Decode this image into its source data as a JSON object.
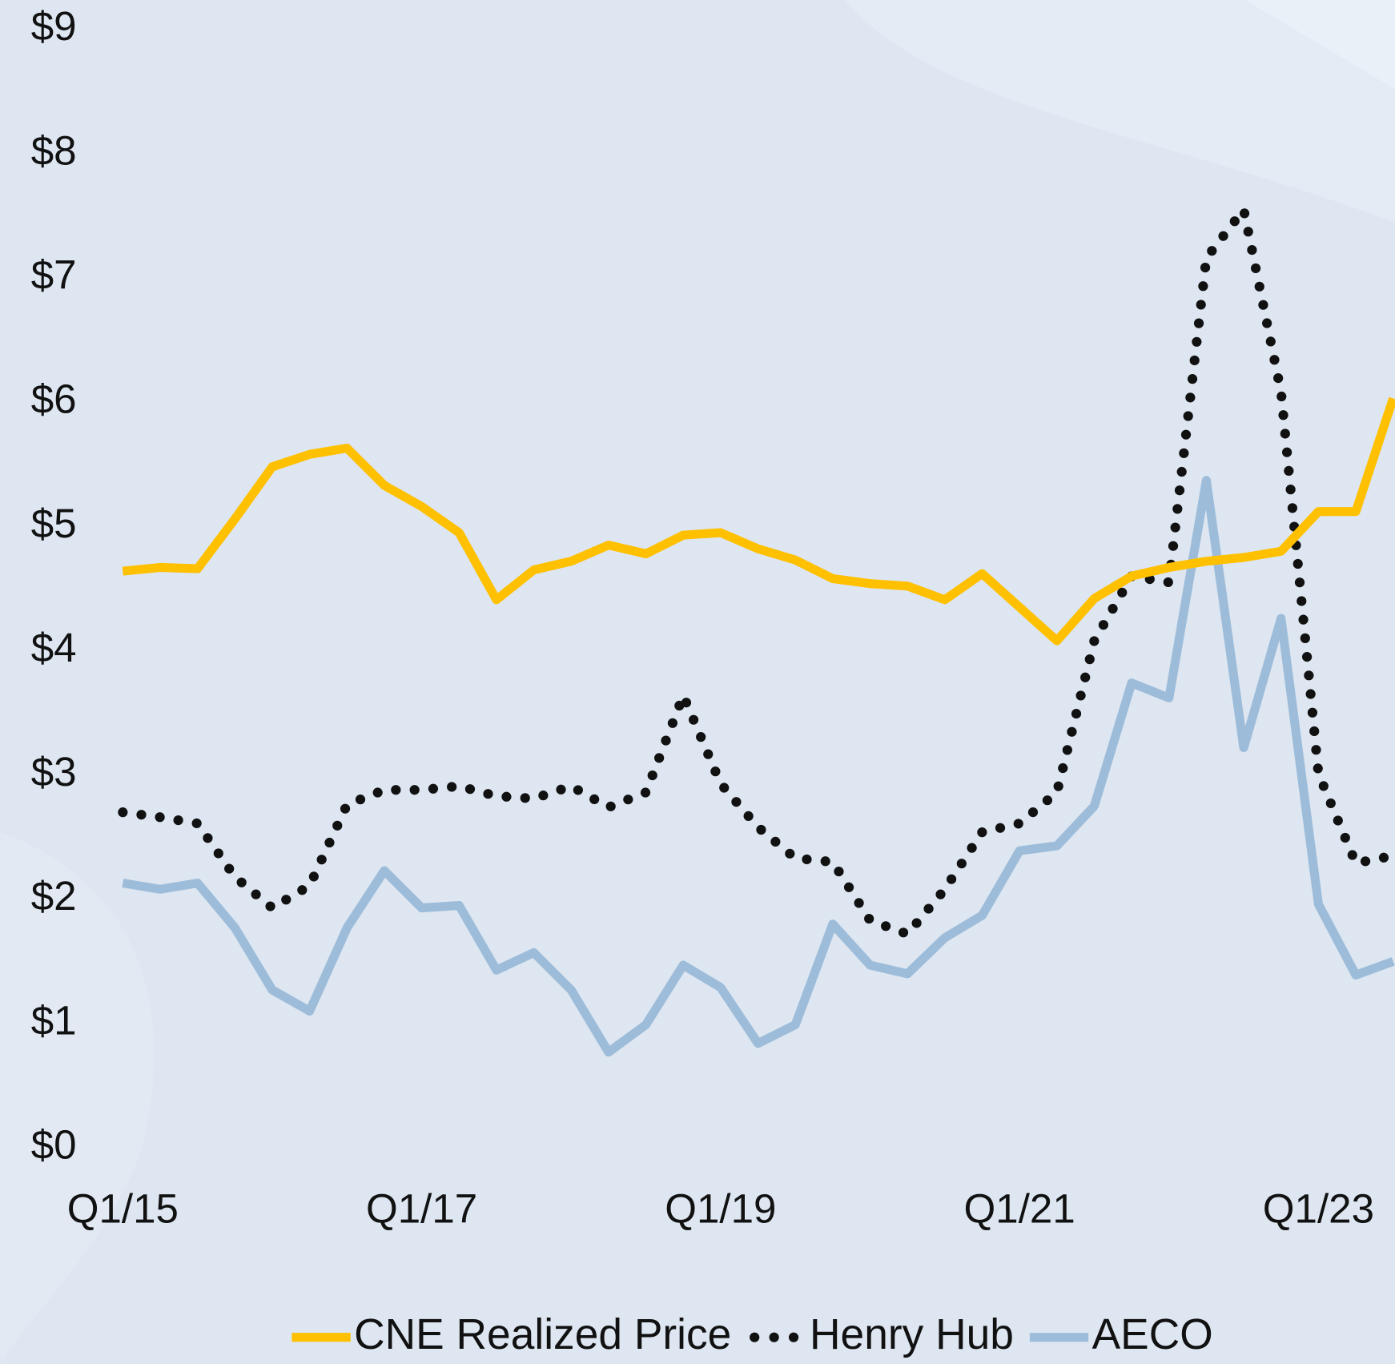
{
  "chart_data": {
    "type": "line",
    "categories": [
      "Q1/15",
      null,
      null,
      null,
      null,
      null,
      null,
      null,
      "Q1/17",
      null,
      null,
      null,
      null,
      null,
      null,
      null,
      "Q1/19",
      null,
      null,
      null,
      null,
      null,
      null,
      null,
      "Q1/21",
      null,
      null,
      null,
      null,
      null,
      null,
      null,
      "Q1/23",
      null,
      null
    ],
    "series": [
      {
        "name": "CNE Realized Price",
        "color": "#ffc000",
        "style": "solid",
        "values": [
          4.64,
          4.67,
          4.66,
          5.06,
          5.48,
          5.58,
          5.63,
          5.33,
          5.16,
          4.95,
          4.41,
          4.65,
          4.72,
          4.85,
          4.78,
          4.93,
          4.95,
          4.82,
          4.73,
          4.58,
          4.54,
          4.52,
          4.41,
          4.62,
          4.35,
          4.08,
          4.42,
          4.6,
          4.67,
          4.72,
          4.75,
          4.8,
          5.12,
          5.12,
          6.03
        ]
      },
      {
        "name": "Henry Hub",
        "color": "#111111",
        "style": "dotted",
        "values": [
          2.7,
          2.66,
          2.61,
          2.18,
          1.93,
          2.11,
          2.76,
          2.88,
          2.88,
          2.91,
          2.83,
          2.81,
          2.91,
          2.74,
          2.86,
          3.64,
          2.93,
          2.58,
          2.33,
          2.3,
          1.83,
          1.72,
          2.08,
          2.54,
          2.61,
          2.86,
          4.08,
          4.6,
          4.55,
          7.16,
          7.55,
          6.08,
          3.01,
          2.29,
          2.35
        ]
      },
      {
        "name": "AECO",
        "color": "#9dbcd9",
        "style": "solid",
        "values": [
          2.13,
          2.08,
          2.13,
          1.77,
          1.27,
          1.1,
          1.77,
          2.23,
          1.93,
          1.95,
          1.43,
          1.57,
          1.27,
          0.77,
          0.99,
          1.47,
          1.29,
          0.84,
          0.99,
          1.8,
          1.47,
          1.4,
          1.69,
          1.87,
          2.39,
          2.43,
          2.75,
          3.74,
          3.62,
          5.37,
          3.22,
          4.26,
          1.96,
          1.39,
          1.5
        ]
      }
    ],
    "ylim": [
      0,
      9
    ],
    "yticks": [
      {
        "value": 0,
        "label": "$0"
      },
      {
        "value": 1,
        "label": "$1"
      },
      {
        "value": 2,
        "label": "$2"
      },
      {
        "value": 3,
        "label": "$3"
      },
      {
        "value": 4,
        "label": "$4"
      },
      {
        "value": 5,
        "label": "$5"
      },
      {
        "value": 6,
        "label": "$6"
      },
      {
        "value": 7,
        "label": "$7"
      },
      {
        "value": 8,
        "label": "$8"
      },
      {
        "value": 9,
        "label": "$9"
      }
    ],
    "grid": false,
    "legend": "bottom"
  }
}
